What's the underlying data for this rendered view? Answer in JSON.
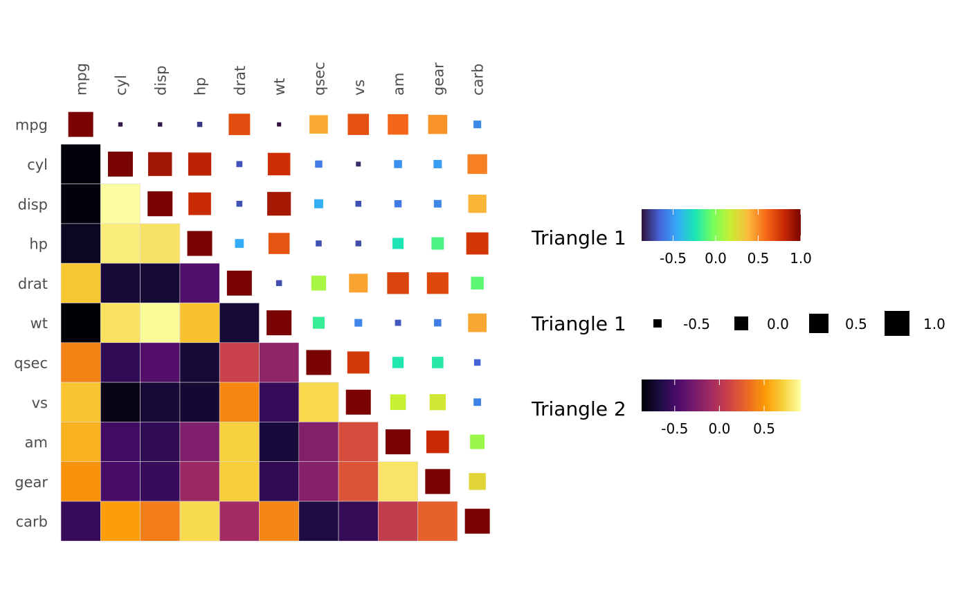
{
  "chart_data": {
    "type": "heatmap",
    "title": "",
    "variables": [
      "mpg",
      "cyl",
      "disp",
      "hp",
      "drat",
      "wt",
      "qsec",
      "vs",
      "am",
      "gear",
      "carb"
    ],
    "x_tick_labels": [
      "mpg",
      "cyl",
      "disp",
      "hp",
      "drat",
      "wt",
      "qsec",
      "vs",
      "am",
      "gear",
      "carb"
    ],
    "y_tick_labels": [
      "mpg",
      "cyl",
      "disp",
      "hp",
      "drat",
      "wt",
      "qsec",
      "vs",
      "am",
      "gear",
      "carb"
    ],
    "correlation_matrix": [
      [
        1.0,
        -0.852,
        -0.848,
        -0.776,
        0.681,
        -0.868,
        0.419,
        0.664,
        0.6,
        0.48,
        -0.551
      ],
      [
        -0.852,
        1.0,
        0.902,
        0.832,
        -0.7,
        0.782,
        -0.591,
        -0.811,
        -0.523,
        -0.493,
        0.527
      ],
      [
        -0.848,
        0.902,
        1.0,
        0.791,
        -0.71,
        0.888,
        -0.434,
        -0.71,
        -0.591,
        -0.556,
        0.395
      ],
      [
        -0.776,
        0.832,
        0.791,
        1.0,
        -0.449,
        0.659,
        -0.708,
        -0.723,
        -0.243,
        -0.126,
        0.75
      ],
      [
        0.681,
        -0.7,
        -0.71,
        -0.449,
        1.0,
        -0.712,
        0.091,
        0.44,
        0.713,
        0.7,
        -0.091
      ],
      [
        -0.868,
        0.782,
        0.888,
        0.659,
        -0.712,
        1.0,
        -0.175,
        -0.555,
        -0.692,
        -0.583,
        0.428
      ],
      [
        0.419,
        -0.591,
        -0.434,
        -0.708,
        0.091,
        -0.175,
        1.0,
        0.745,
        -0.23,
        -0.213,
        -0.656
      ],
      [
        0.664,
        -0.811,
        -0.71,
        -0.723,
        0.44,
        -0.555,
        0.745,
        1.0,
        0.168,
        0.206,
        -0.57
      ],
      [
        0.6,
        -0.523,
        -0.591,
        -0.243,
        0.713,
        -0.692,
        -0.23,
        0.168,
        1.0,
        0.794,
        0.058
      ],
      [
        0.48,
        -0.493,
        -0.556,
        -0.126,
        0.7,
        -0.583,
        -0.213,
        0.206,
        0.794,
        1.0,
        0.274
      ],
      [
        -0.551,
        0.527,
        0.395,
        0.75,
        -0.091,
        0.428,
        -0.656,
        -0.57,
        0.058,
        0.274,
        1.0
      ]
    ],
    "upper_triangle": {
      "encoding": "colour (turbo palette) and square size",
      "include_diagonal": true
    },
    "lower_triangle": {
      "encoding": "colour (inferno palette), full tiles",
      "include_diagonal": false
    },
    "legends": [
      {
        "title": "Triangle 1",
        "kind": "colorbar",
        "palette": "turbo",
        "range": [
          -0.87,
          1.0
        ],
        "ticks": [
          "-0.5",
          "0.0",
          "0.5",
          "1.0"
        ],
        "tick_values": [
          -0.5,
          0.0,
          0.5,
          1.0
        ]
      },
      {
        "title": "Triangle 1",
        "kind": "size",
        "entries": [
          "-0.5",
          "0.0",
          "0.5",
          "1.0"
        ],
        "entry_values": [
          -0.5,
          0.0,
          0.5,
          1.0
        ]
      },
      {
        "title": "Triangle 2",
        "kind": "colorbar",
        "palette": "inferno",
        "range": [
          -0.87,
          0.91
        ],
        "ticks": [
          "-0.5",
          "0.0",
          "0.5"
        ],
        "tick_values": [
          -0.5,
          0.0,
          0.5
        ]
      }
    ],
    "colors": {
      "turbo": [
        "#30123b",
        "#4662d7",
        "#36aaf9",
        "#1ae4b6",
        "#72fe5e",
        "#c7ef34",
        "#fabb3b",
        "#f66b19",
        "#ca2a04",
        "#7a0403"
      ],
      "inferno": [
        "#000004",
        "#1b0c42",
        "#4b0c6b",
        "#781c6d",
        "#a52c60",
        "#cf4446",
        "#ed6925",
        "#fb9b06",
        "#f7d13d",
        "#fcffa4"
      ]
    }
  }
}
